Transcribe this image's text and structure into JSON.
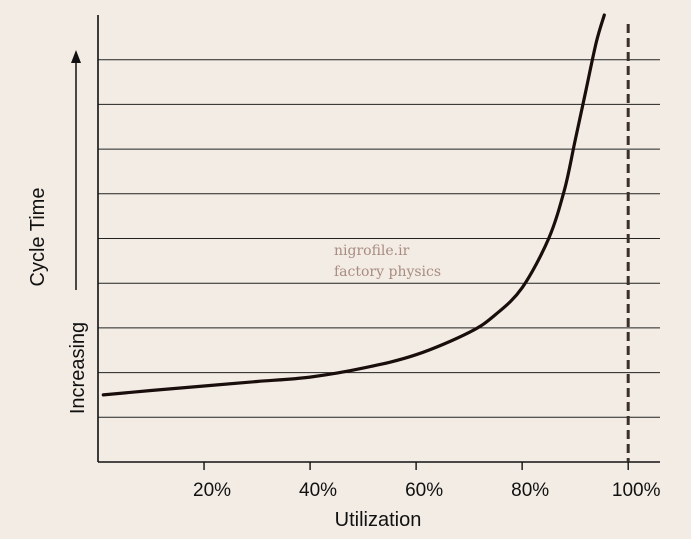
{
  "chart_data": {
    "type": "line",
    "title": "",
    "xlabel": "Utilization",
    "ylabel_lines": [
      "Cycle Time",
      "Increasing"
    ],
    "x_tick_labels": [
      "20%",
      "40%",
      "60%",
      "80%",
      "100%"
    ],
    "x_ticks": [
      0.2,
      0.4,
      0.6,
      0.8,
      1.0
    ],
    "xlim": [
      0.0,
      1.06
    ],
    "ylim": [
      0,
      10
    ],
    "y_ticks": [
      1,
      2,
      3,
      4,
      5,
      6,
      7,
      8,
      9
    ],
    "grid": "horizontal",
    "capacity_line": {
      "x": 1.0,
      "style": "dashed",
      "color": "#3a2f2a"
    },
    "series": [
      {
        "color": "#1a0e0c",
        "x": [
          0.01,
          0.1,
          0.2,
          0.3,
          0.4,
          0.5,
          0.6,
          0.7,
          0.75,
          0.8,
          0.85,
          0.88,
          0.9,
          0.92,
          0.94,
          0.955
        ],
        "y": [
          1.5,
          1.6,
          1.7,
          1.8,
          1.9,
          2.1,
          2.4,
          2.9,
          3.3,
          3.9,
          5.0,
          6.1,
          7.2,
          8.3,
          9.4,
          10.0
        ]
      }
    ]
  },
  "watermark": [
    "nigrofile.ir",
    "factory physics"
  ],
  "colors": {
    "background": "#f3ece4",
    "axis": "#111111",
    "grid": "#222222",
    "curve": "#1a0e0c"
  }
}
